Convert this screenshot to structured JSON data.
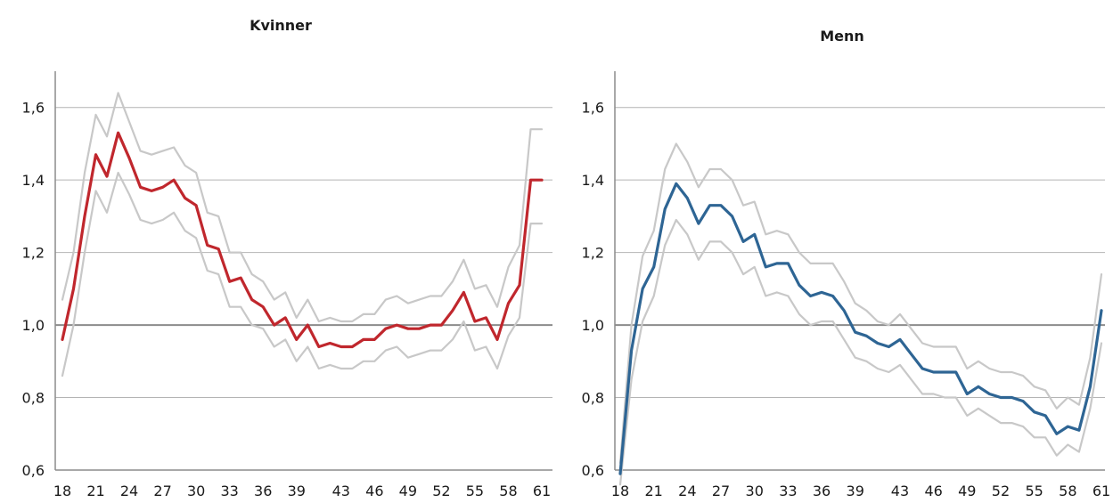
{
  "chart_data": [
    {
      "type": "line",
      "title": "Kvinner",
      "xlabel": "",
      "ylabel": "",
      "ylim": [
        0.6,
        1.7
      ],
      "yticks": [
        "0,6",
        "0,8",
        "1,0",
        "1,2",
        "1,4",
        "1,6"
      ],
      "xticks": [
        "18",
        "21",
        "24",
        "27",
        "30",
        "33",
        "36",
        "39",
        "43",
        "46",
        "49",
        "52",
        "55",
        "58",
        "61"
      ],
      "reference_line": 1.0,
      "grid": true,
      "colors": {
        "main": "#c0272d",
        "band": "#c8c8c8",
        "grid": "#b4b4b4",
        "reference": "#8c8c8c"
      },
      "x": [
        18,
        19,
        20,
        21,
        22,
        23,
        24,
        25,
        26,
        27,
        28,
        29,
        30,
        31,
        32,
        33,
        34,
        35,
        36,
        37,
        38,
        39,
        40,
        41,
        42,
        43,
        44,
        45,
        46,
        47,
        48,
        49,
        50,
        51,
        52,
        53,
        54,
        55,
        56,
        57,
        58,
        59,
        60,
        61
      ],
      "series": [
        {
          "values": [
            0.96,
            1.1,
            1.3,
            1.47,
            1.41,
            1.53,
            1.46,
            1.38,
            1.37,
            1.38,
            1.4,
            1.35,
            1.33,
            1.22,
            1.21,
            1.12,
            1.13,
            1.07,
            1.05,
            1.0,
            1.02,
            0.96,
            1.0,
            0.94,
            0.95,
            0.94,
            0.94,
            0.96,
            0.96,
            0.99,
            1.0,
            0.99,
            0.99,
            1.0,
            1.0,
            1.04,
            1.09,
            1.01,
            1.02,
            0.96,
            1.06,
            1.11,
            1.4,
            1.4
          ]
        },
        {
          "values": [
            1.07,
            1.2,
            1.42,
            1.58,
            1.52,
            1.64,
            1.56,
            1.48,
            1.47,
            1.48,
            1.49,
            1.44,
            1.42,
            1.31,
            1.3,
            1.2,
            1.2,
            1.14,
            1.12,
            1.07,
            1.09,
            1.02,
            1.07,
            1.01,
            1.02,
            1.01,
            1.01,
            1.03,
            1.03,
            1.07,
            1.08,
            1.06,
            1.07,
            1.08,
            1.08,
            1.12,
            1.18,
            1.1,
            1.11,
            1.05,
            1.16,
            1.22,
            1.54,
            1.54
          ]
        },
        {
          "values": [
            0.86,
            1.0,
            1.2,
            1.37,
            1.31,
            1.42,
            1.36,
            1.29,
            1.28,
            1.29,
            1.31,
            1.26,
            1.24,
            1.15,
            1.14,
            1.05,
            1.05,
            1.0,
            0.99,
            0.94,
            0.96,
            0.9,
            0.94,
            0.88,
            0.89,
            0.88,
            0.88,
            0.9,
            0.9,
            0.93,
            0.94,
            0.91,
            0.92,
            0.93,
            0.93,
            0.96,
            1.01,
            0.93,
            0.94,
            0.88,
            0.97,
            1.02,
            1.28,
            1.28
          ]
        }
      ]
    },
    {
      "type": "line",
      "title": "Menn",
      "xlabel": "",
      "ylabel": "",
      "ylim": [
        0.6,
        1.7
      ],
      "yticks": [
        "0,6",
        "0,8",
        "1,0",
        "1,2",
        "1,4",
        "1,6"
      ],
      "xticks": [
        "18",
        "21",
        "24",
        "27",
        "30",
        "33",
        "36",
        "39",
        "43",
        "46",
        "49",
        "52",
        "55",
        "58",
        "61"
      ],
      "reference_line": 1.0,
      "grid": true,
      "colors": {
        "main": "#2e6594",
        "band": "#c8c8c8",
        "grid": "#b4b4b4",
        "reference": "#8c8c8c"
      },
      "x": [
        18,
        19,
        20,
        21,
        22,
        23,
        24,
        25,
        26,
        27,
        28,
        29,
        30,
        31,
        32,
        33,
        34,
        35,
        36,
        37,
        38,
        39,
        40,
        41,
        42,
        43,
        44,
        45,
        46,
        47,
        48,
        49,
        50,
        51,
        52,
        53,
        54,
        55,
        56,
        57,
        58,
        59,
        60,
        61
      ],
      "series": [
        {
          "values": [
            0.59,
            0.93,
            1.1,
            1.16,
            1.32,
            1.39,
            1.35,
            1.28,
            1.33,
            1.33,
            1.3,
            1.23,
            1.25,
            1.16,
            1.17,
            1.17,
            1.11,
            1.08,
            1.09,
            1.08,
            1.04,
            0.98,
            0.97,
            0.95,
            0.94,
            0.96,
            0.92,
            0.88,
            0.87,
            0.87,
            0.87,
            0.81,
            0.83,
            0.81,
            0.8,
            0.8,
            0.79,
            0.76,
            0.75,
            0.7,
            0.72,
            0.71,
            0.83,
            1.04
          ]
        },
        {
          "values": [
            0.62,
            1.0,
            1.19,
            1.26,
            1.43,
            1.5,
            1.45,
            1.38,
            1.43,
            1.43,
            1.4,
            1.33,
            1.34,
            1.25,
            1.26,
            1.25,
            1.2,
            1.17,
            1.17,
            1.17,
            1.12,
            1.06,
            1.04,
            1.01,
            1.0,
            1.03,
            0.99,
            0.95,
            0.94,
            0.94,
            0.94,
            0.88,
            0.9,
            0.88,
            0.87,
            0.87,
            0.86,
            0.83,
            0.82,
            0.77,
            0.8,
            0.78,
            0.91,
            1.14
          ]
        },
        {
          "values": [
            0.56,
            0.85,
            1.01,
            1.08,
            1.22,
            1.29,
            1.25,
            1.18,
            1.23,
            1.23,
            1.2,
            1.14,
            1.16,
            1.08,
            1.09,
            1.08,
            1.03,
            1.0,
            1.01,
            1.01,
            0.96,
            0.91,
            0.9,
            0.88,
            0.87,
            0.89,
            0.85,
            0.81,
            0.81,
            0.8,
            0.8,
            0.75,
            0.77,
            0.75,
            0.73,
            0.73,
            0.72,
            0.69,
            0.69,
            0.64,
            0.67,
            0.65,
            0.77,
            0.95
          ]
        }
      ]
    }
  ]
}
